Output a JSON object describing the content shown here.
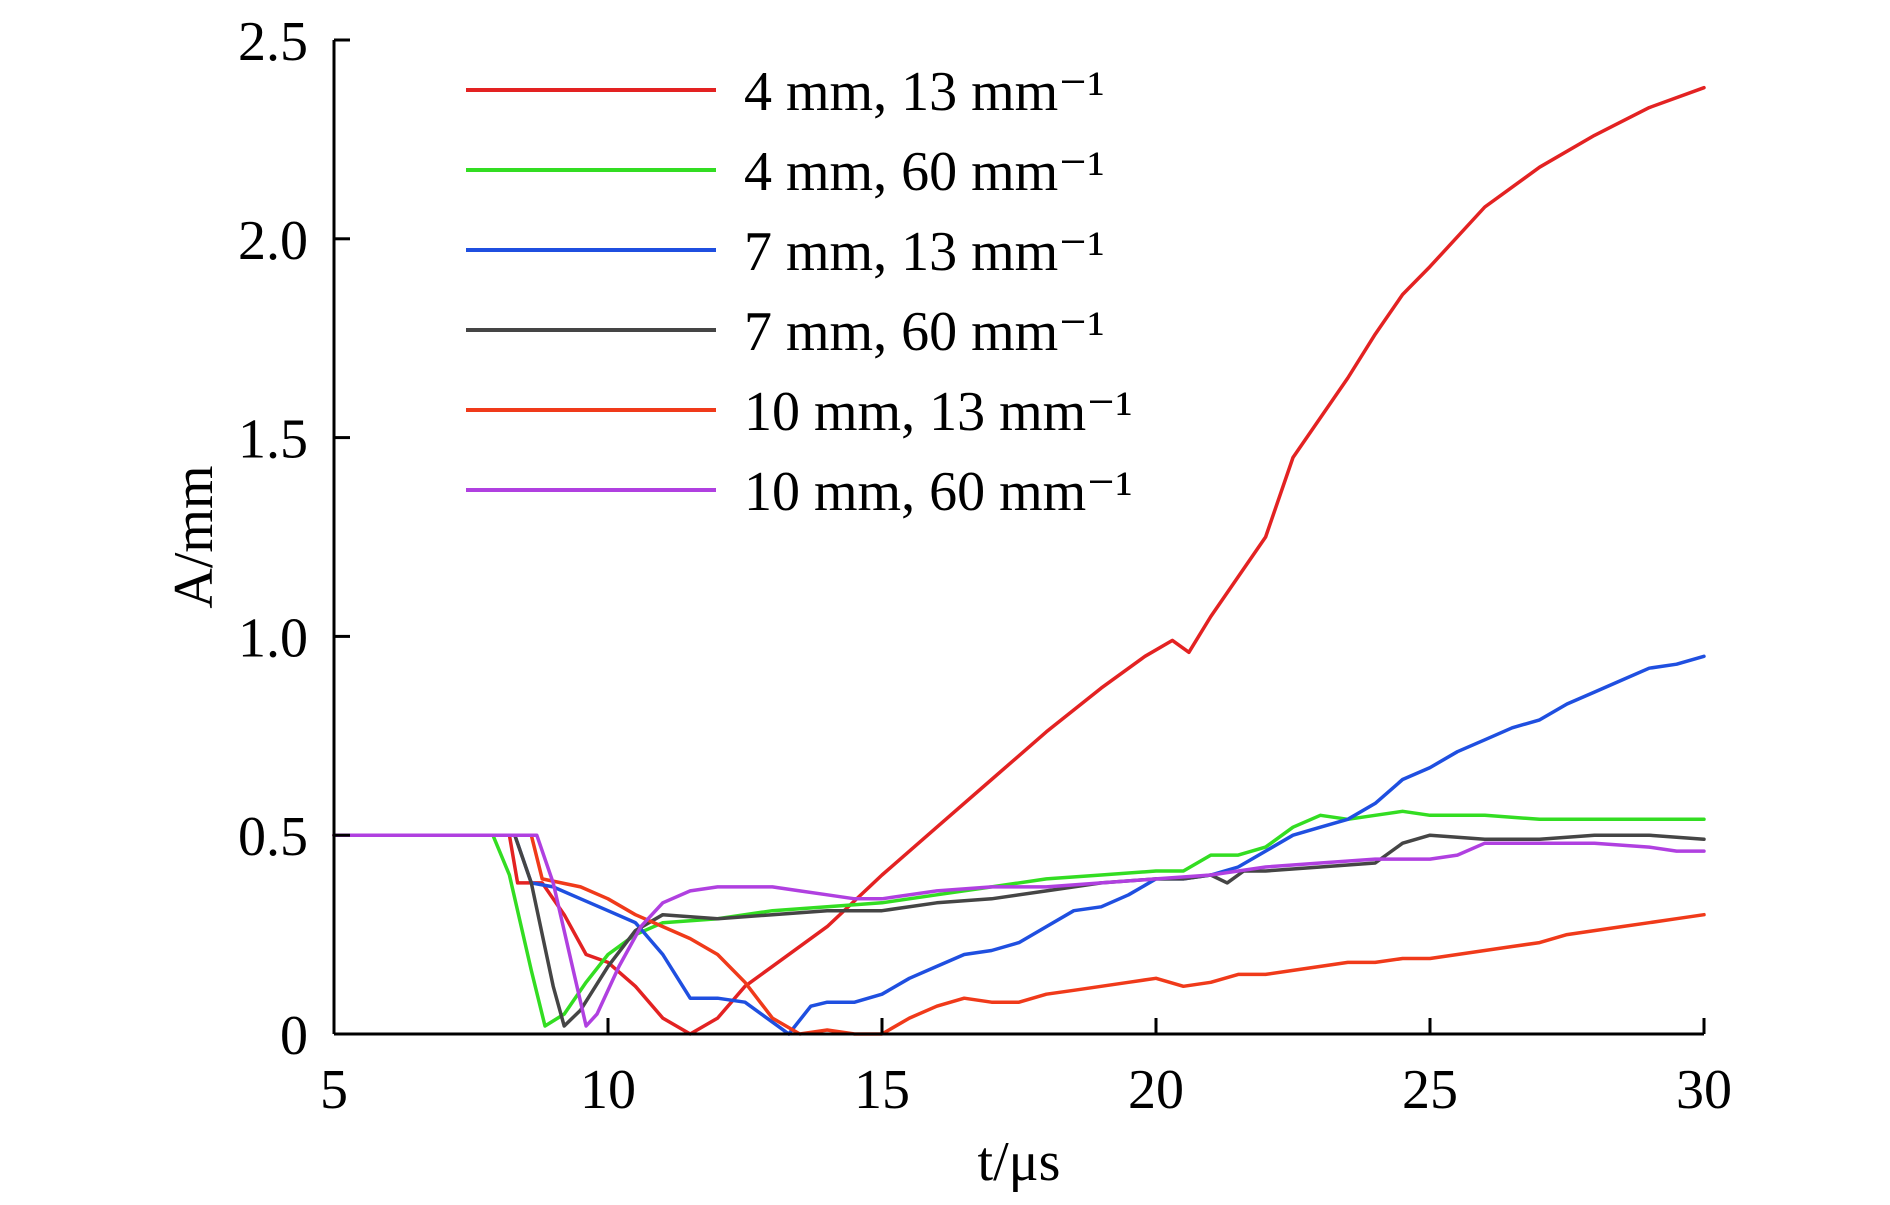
{
  "chart_data": {
    "type": "line",
    "title": "",
    "xlabel": "t/μs",
    "ylabel": "A/mm",
    "xlim": [
      5,
      30
    ],
    "ylim": [
      0,
      2.5
    ],
    "x_ticks": [
      "5",
      "10",
      "15",
      "20",
      "25",
      "30"
    ],
    "y_ticks": [
      "0",
      "0.5",
      "1.0",
      "1.5",
      "2.0",
      "2.5"
    ],
    "legend_position": "top-left",
    "series": [
      {
        "name": "4 mm,  13 mm⁻¹",
        "color": "#e32222",
        "points": [
          [
            5,
            0.5
          ],
          [
            8.2,
            0.5
          ],
          [
            8.35,
            0.38
          ],
          [
            8.8,
            0.38
          ],
          [
            9.2,
            0.3
          ],
          [
            9.6,
            0.2
          ],
          [
            10.0,
            0.18
          ],
          [
            10.5,
            0.12
          ],
          [
            11.0,
            0.04
          ],
          [
            11.5,
            0.0
          ],
          [
            12.0,
            0.04
          ],
          [
            12.5,
            0.12
          ],
          [
            13.0,
            0.17
          ],
          [
            14.0,
            0.27
          ],
          [
            15.0,
            0.4
          ],
          [
            16.0,
            0.52
          ],
          [
            17.0,
            0.64
          ],
          [
            18.0,
            0.76
          ],
          [
            19.0,
            0.87
          ],
          [
            19.8,
            0.95
          ],
          [
            20.3,
            0.99
          ],
          [
            20.6,
            0.96
          ],
          [
            21.0,
            1.05
          ],
          [
            21.5,
            1.15
          ],
          [
            22.0,
            1.25
          ],
          [
            22.5,
            1.45
          ],
          [
            23.0,
            1.55
          ],
          [
            23.5,
            1.65
          ],
          [
            24.0,
            1.76
          ],
          [
            24.5,
            1.86
          ],
          [
            25.0,
            1.93
          ],
          [
            26.0,
            2.08
          ],
          [
            27.0,
            2.18
          ],
          [
            28.0,
            2.26
          ],
          [
            29.0,
            2.33
          ],
          [
            30.0,
            2.38
          ]
        ]
      },
      {
        "name": "4 mm,  60 mm⁻¹",
        "color": "#33dd22",
        "points": [
          [
            5,
            0.5
          ],
          [
            7.9,
            0.5
          ],
          [
            8.2,
            0.4
          ],
          [
            8.6,
            0.16
          ],
          [
            8.85,
            0.02
          ],
          [
            9.2,
            0.05
          ],
          [
            9.6,
            0.13
          ],
          [
            10.0,
            0.2
          ],
          [
            10.5,
            0.25
          ],
          [
            11.0,
            0.28
          ],
          [
            12.0,
            0.29
          ],
          [
            13.0,
            0.31
          ],
          [
            14.0,
            0.32
          ],
          [
            15.0,
            0.33
          ],
          [
            16.0,
            0.35
          ],
          [
            17.0,
            0.37
          ],
          [
            18.0,
            0.39
          ],
          [
            19.0,
            0.4
          ],
          [
            20.0,
            0.41
          ],
          [
            20.5,
            0.41
          ],
          [
            21.0,
            0.45
          ],
          [
            21.5,
            0.45
          ],
          [
            22.0,
            0.47
          ],
          [
            22.5,
            0.52
          ],
          [
            23.0,
            0.55
          ],
          [
            23.5,
            0.54
          ],
          [
            24.0,
            0.55
          ],
          [
            24.5,
            0.56
          ],
          [
            25.0,
            0.55
          ],
          [
            26.0,
            0.55
          ],
          [
            27.0,
            0.54
          ],
          [
            28.0,
            0.54
          ],
          [
            29.0,
            0.54
          ],
          [
            30.0,
            0.54
          ]
        ]
      },
      {
        "name": "7 mm,  13 mm⁻¹",
        "color": "#1f4fe0",
        "points": [
          [
            5,
            0.5
          ],
          [
            8.3,
            0.5
          ],
          [
            8.6,
            0.38
          ],
          [
            9.0,
            0.37
          ],
          [
            9.5,
            0.34
          ],
          [
            10.0,
            0.31
          ],
          [
            10.5,
            0.28
          ],
          [
            11.0,
            0.2
          ],
          [
            11.5,
            0.09
          ],
          [
            12.0,
            0.09
          ],
          [
            12.5,
            0.08
          ],
          [
            13.0,
            0.03
          ],
          [
            13.3,
            0.0
          ],
          [
            13.7,
            0.07
          ],
          [
            14.0,
            0.08
          ],
          [
            14.5,
            0.08
          ],
          [
            15.0,
            0.1
          ],
          [
            15.5,
            0.14
          ],
          [
            16.0,
            0.17
          ],
          [
            16.5,
            0.2
          ],
          [
            17.0,
            0.21
          ],
          [
            17.5,
            0.23
          ],
          [
            18.0,
            0.27
          ],
          [
            18.5,
            0.31
          ],
          [
            19.0,
            0.32
          ],
          [
            19.5,
            0.35
          ],
          [
            20.0,
            0.39
          ],
          [
            20.5,
            0.39
          ],
          [
            21.0,
            0.4
          ],
          [
            21.5,
            0.42
          ],
          [
            22.0,
            0.46
          ],
          [
            22.5,
            0.5
          ],
          [
            23.0,
            0.52
          ],
          [
            23.5,
            0.54
          ],
          [
            24.0,
            0.58
          ],
          [
            24.5,
            0.64
          ],
          [
            25.0,
            0.67
          ],
          [
            25.5,
            0.71
          ],
          [
            26.0,
            0.74
          ],
          [
            26.5,
            0.77
          ],
          [
            27.0,
            0.79
          ],
          [
            27.5,
            0.83
          ],
          [
            28.0,
            0.86
          ],
          [
            28.5,
            0.89
          ],
          [
            29.0,
            0.92
          ],
          [
            29.5,
            0.93
          ],
          [
            30.0,
            0.95
          ]
        ]
      },
      {
        "name": "7 mm,  60 mm⁻¹",
        "color": "#454545",
        "points": [
          [
            5,
            0.5
          ],
          [
            8.3,
            0.5
          ],
          [
            8.6,
            0.38
          ],
          [
            9.0,
            0.12
          ],
          [
            9.2,
            0.02
          ],
          [
            9.5,
            0.06
          ],
          [
            10.0,
            0.17
          ],
          [
            10.5,
            0.26
          ],
          [
            11.0,
            0.3
          ],
          [
            12.0,
            0.29
          ],
          [
            13.0,
            0.3
          ],
          [
            14.0,
            0.31
          ],
          [
            15.0,
            0.31
          ],
          [
            16.0,
            0.33
          ],
          [
            17.0,
            0.34
          ],
          [
            18.0,
            0.36
          ],
          [
            19.0,
            0.38
          ],
          [
            20.0,
            0.39
          ],
          [
            20.5,
            0.39
          ],
          [
            21.0,
            0.4
          ],
          [
            21.3,
            0.38
          ],
          [
            21.6,
            0.41
          ],
          [
            22.0,
            0.41
          ],
          [
            23.0,
            0.42
          ],
          [
            24.0,
            0.43
          ],
          [
            24.5,
            0.48
          ],
          [
            25.0,
            0.5
          ],
          [
            26.0,
            0.49
          ],
          [
            27.0,
            0.49
          ],
          [
            28.0,
            0.5
          ],
          [
            29.0,
            0.5
          ],
          [
            30.0,
            0.49
          ]
        ]
      },
      {
        "name": "10 mm,  13 mm⁻¹",
        "color": "#f03a1a",
        "points": [
          [
            5,
            0.5
          ],
          [
            8.6,
            0.5
          ],
          [
            8.8,
            0.39
          ],
          [
            9.5,
            0.37
          ],
          [
            10.0,
            0.34
          ],
          [
            10.5,
            0.3
          ],
          [
            11.0,
            0.27
          ],
          [
            11.5,
            0.24
          ],
          [
            12.0,
            0.2
          ],
          [
            12.5,
            0.13
          ],
          [
            13.0,
            0.04
          ],
          [
            13.5,
            0.0
          ],
          [
            14.0,
            0.01
          ],
          [
            14.5,
            0.0
          ],
          [
            15.0,
            0.0
          ],
          [
            15.5,
            0.04
          ],
          [
            16.0,
            0.07
          ],
          [
            16.5,
            0.09
          ],
          [
            17.0,
            0.08
          ],
          [
            17.5,
            0.08
          ],
          [
            18.0,
            0.1
          ],
          [
            18.5,
            0.11
          ],
          [
            19.0,
            0.12
          ],
          [
            19.5,
            0.13
          ],
          [
            20.0,
            0.14
          ],
          [
            20.5,
            0.12
          ],
          [
            21.0,
            0.13
          ],
          [
            21.5,
            0.15
          ],
          [
            22.0,
            0.15
          ],
          [
            22.5,
            0.16
          ],
          [
            23.0,
            0.17
          ],
          [
            23.5,
            0.18
          ],
          [
            24.0,
            0.18
          ],
          [
            24.5,
            0.19
          ],
          [
            25.0,
            0.19
          ],
          [
            25.5,
            0.2
          ],
          [
            26.0,
            0.21
          ],
          [
            26.5,
            0.22
          ],
          [
            27.0,
            0.23
          ],
          [
            27.5,
            0.25
          ],
          [
            28.0,
            0.26
          ],
          [
            28.5,
            0.27
          ],
          [
            29.0,
            0.28
          ],
          [
            29.5,
            0.29
          ],
          [
            30.0,
            0.3
          ]
        ]
      },
      {
        "name": "10 mm,  60 mm⁻¹",
        "color": "#b040e0",
        "points": [
          [
            5,
            0.5
          ],
          [
            8.7,
            0.5
          ],
          [
            9.0,
            0.38
          ],
          [
            9.4,
            0.14
          ],
          [
            9.6,
            0.02
          ],
          [
            9.8,
            0.05
          ],
          [
            10.2,
            0.17
          ],
          [
            10.6,
            0.27
          ],
          [
            11.0,
            0.33
          ],
          [
            11.5,
            0.36
          ],
          [
            12.0,
            0.37
          ],
          [
            12.5,
            0.37
          ],
          [
            13.0,
            0.37
          ],
          [
            13.5,
            0.36
          ],
          [
            14.0,
            0.35
          ],
          [
            14.5,
            0.34
          ],
          [
            15.0,
            0.34
          ],
          [
            16.0,
            0.36
          ],
          [
            17.0,
            0.37
          ],
          [
            18.0,
            0.37
          ],
          [
            19.0,
            0.38
          ],
          [
            20.0,
            0.39
          ],
          [
            21.0,
            0.4
          ],
          [
            22.0,
            0.42
          ],
          [
            23.0,
            0.43
          ],
          [
            24.0,
            0.44
          ],
          [
            25.0,
            0.44
          ],
          [
            25.5,
            0.45
          ],
          [
            26.0,
            0.48
          ],
          [
            27.0,
            0.48
          ],
          [
            28.0,
            0.48
          ],
          [
            29.0,
            0.47
          ],
          [
            29.5,
            0.46
          ],
          [
            30.0,
            0.46
          ]
        ]
      }
    ]
  }
}
